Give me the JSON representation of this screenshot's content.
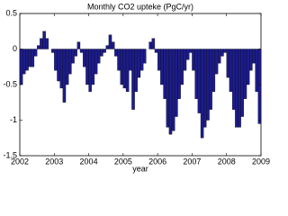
{
  "chart_data": {
    "type": "bar",
    "title": "Monthly CO2 upteke (PgC/yr)",
    "x_label": "year",
    "x": [
      2002,
      2002.083,
      2002.167,
      2002.25,
      2002.333,
      2002.417,
      2002.5,
      2002.583,
      2002.667,
      2002.75,
      2002.833,
      2002.917,
      2003,
      2003.083,
      2003.167,
      2003.25,
      2003.333,
      2003.417,
      2003.5,
      2003.583,
      2003.667,
      2003.75,
      2003.833,
      2003.917,
      2004,
      2004.083,
      2004.167,
      2004.25,
      2004.333,
      2004.417,
      2004.5,
      2004.583,
      2004.667,
      2004.75,
      2004.833,
      2004.917,
      2005,
      2005.083,
      2005.167,
      2005.25,
      2005.333,
      2005.417,
      2005.5,
      2005.583,
      2005.667,
      2005.75,
      2005.833,
      2005.917,
      2006,
      2006.083,
      2006.167,
      2006.25,
      2006.333,
      2006.417,
      2006.5,
      2006.583,
      2006.667,
      2006.75,
      2006.833,
      2006.917,
      2007,
      2007.083,
      2007.167,
      2007.25,
      2007.333,
      2007.417,
      2007.5,
      2007.583,
      2007.667,
      2007.75,
      2007.833,
      2007.917,
      2008,
      2008.083,
      2008.167,
      2008.25,
      2008.333,
      2008.417,
      2008.5,
      2008.583,
      2008.667,
      2008.75,
      2008.833,
      2008.917
    ],
    "values": [
      -0.5,
      -0.35,
      -0.3,
      -0.25,
      -0.25,
      -0.1,
      0.05,
      0.15,
      0.25,
      0.15,
      0.0,
      -0.05,
      -0.3,
      -0.45,
      -0.55,
      -0.75,
      -0.5,
      -0.35,
      -0.2,
      -0.1,
      0.1,
      -0.05,
      -0.25,
      -0.5,
      -0.6,
      -0.5,
      -0.35,
      -0.2,
      -0.1,
      -0.05,
      0.05,
      0.2,
      0.1,
      -0.1,
      -0.3,
      -0.5,
      -0.55,
      -0.6,
      -0.3,
      -0.85,
      -0.6,
      -0.4,
      -0.3,
      -0.2,
      0.0,
      0.1,
      0.15,
      -0.05,
      -0.3,
      -0.5,
      -0.7,
      -1.1,
      -1.2,
      -1.15,
      -0.95,
      -0.7,
      -0.5,
      -0.3,
      -0.15,
      -0.05,
      -0.3,
      -0.7,
      -0.9,
      -1.25,
      -1.1,
      -1.0,
      -0.85,
      -0.6,
      -0.35,
      -0.2,
      -0.1,
      -0.05,
      -0.4,
      -0.6,
      -0.85,
      -1.1,
      -1.1,
      -0.95,
      -0.7,
      -0.5,
      -0.3,
      -0.2,
      -0.6,
      -1.05
    ],
    "color": "#1c1c8a",
    "xlim": [
      2002,
      2009
    ],
    "xticks": [
      2002,
      2003,
      2004,
      2005,
      2006,
      2007,
      2008,
      2009
    ],
    "ylim": [
      -1.5,
      0.5
    ],
    "yticks": [
      -1.5,
      -1,
      -0.5,
      0,
      0.5
    ]
  }
}
